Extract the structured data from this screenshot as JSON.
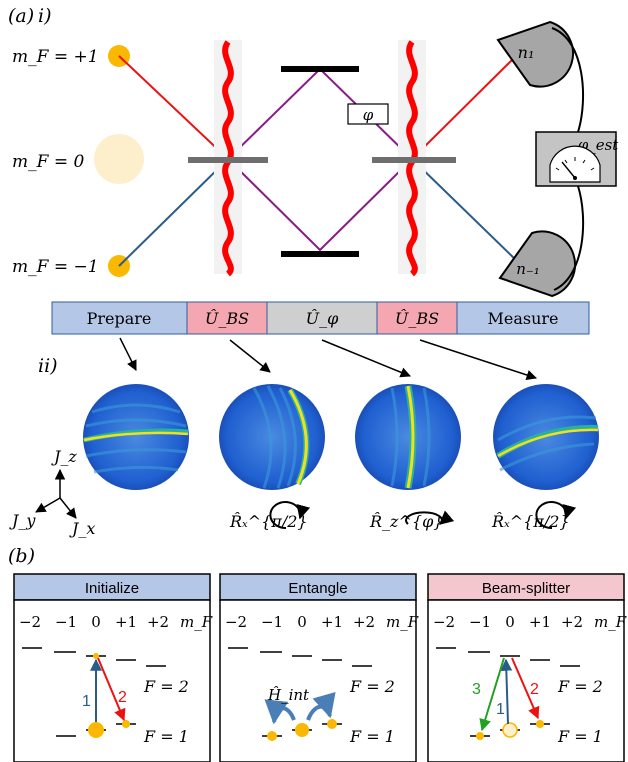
{
  "panel_a": {
    "label": "(a)",
    "sub_i": "i)",
    "sub_ii": "ii)",
    "mf_plus": "m_F = +1",
    "mf_zero": "m_F = 0",
    "mf_minus": "m_F = −1",
    "phase_box": "φ",
    "detector_top": "n₁",
    "detector_bottom": "n₋₁",
    "estimator": "φ_est",
    "colors": {
      "atom": "#fbb800",
      "atom_faint": "#fdefcc",
      "red_beam": "#ee1111",
      "blue_beam": "#2a5c8a",
      "purple_beam": "#8a1a8a",
      "wave": "#ff0000",
      "splitter": "#6e6e6e",
      "detector": "#a6a6a6"
    },
    "sequence": [
      {
        "label": "Prepare",
        "color": "#b4c7e7"
      },
      {
        "label": "Û_BS",
        "color": "#f4a7b0"
      },
      {
        "label": "Û_φ",
        "color": "#cfcfcf"
      },
      {
        "label": "Û_BS",
        "color": "#f4a7b0"
      },
      {
        "label": "Measure",
        "color": "#b4c7e7"
      }
    ],
    "rotations": [
      "R̂ₓ^{π/2}",
      "R̂_z^{φ}",
      "R̂ₓ^{π/2}"
    ],
    "axes": {
      "jz": "J_z",
      "jy": "J_y",
      "jx": "J_x"
    }
  },
  "panel_b": {
    "label": "(b)",
    "mf_header": [
      "−2",
      "−1",
      "0",
      "+1",
      "+2"
    ],
    "mf_symbol": "m_F",
    "f2": "F = 2",
    "f1": "F = 1",
    "boxes": [
      {
        "title": "Initialize",
        "color": "#b4c7e7",
        "arrows": [
          "1",
          "2"
        ]
      },
      {
        "title": "Entangle",
        "color": "#b4c7e7",
        "hint": "Ĥ_int"
      },
      {
        "title": "Beam-splitter",
        "color": "#f4c7cf",
        "arrows": [
          "3",
          "1",
          "2"
        ]
      }
    ]
  }
}
